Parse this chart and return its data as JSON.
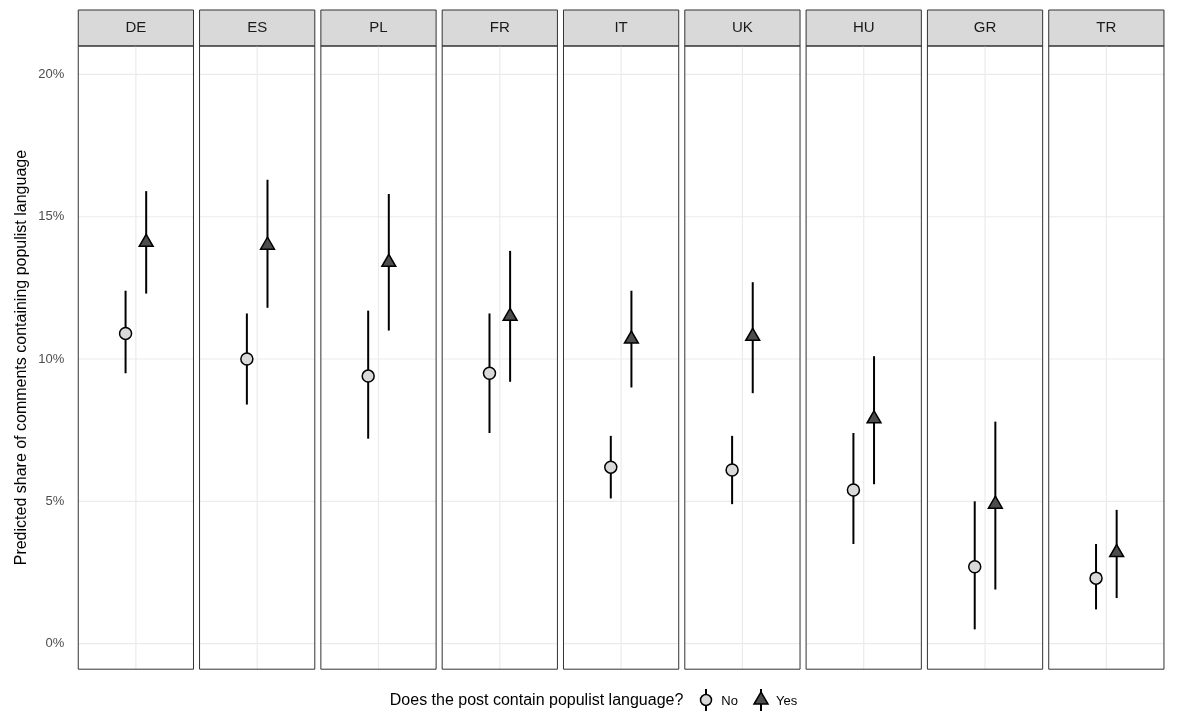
{
  "chart_data": {
    "type": "scatter",
    "ylabel": "Predicted share of comments containing populist language",
    "legend_title": "Does the post contain populist language?",
    "legend": "bottom",
    "grid": true,
    "categories": [
      "DE",
      "ES",
      "PL",
      "FR",
      "IT",
      "UK",
      "HU",
      "GR",
      "TR"
    ],
    "ylim": [
      -0.9,
      21
    ],
    "yticks": [
      {
        "value": 0,
        "label": "0%"
      },
      {
        "value": 5,
        "label": "5%"
      },
      {
        "value": 10,
        "label": "10%"
      },
      {
        "value": 15,
        "label": "15%"
      },
      {
        "value": 20,
        "label": "20%"
      }
    ],
    "series": [
      {
        "name": "No",
        "color": "#d9d9d9",
        "marker": "circle",
        "values": [
          10.9,
          10.0,
          9.4,
          9.5,
          6.2,
          6.1,
          5.4,
          2.7,
          2.3
        ],
        "errors": [
          [
            9.5,
            12.4
          ],
          [
            8.4,
            11.6
          ],
          [
            7.2,
            11.7
          ],
          [
            7.4,
            11.6
          ],
          [
            5.1,
            7.3
          ],
          [
            4.9,
            7.3
          ],
          [
            3.5,
            7.4
          ],
          [
            0.5,
            5.0
          ],
          [
            1.2,
            3.5
          ]
        ]
      },
      {
        "name": "Yes",
        "color": "#4d4d4d",
        "marker": "triangle",
        "values": [
          14.1,
          14.0,
          13.4,
          11.5,
          10.7,
          10.8,
          7.9,
          4.9,
          3.2
        ],
        "errors": [
          [
            12.3,
            15.9
          ],
          [
            11.8,
            16.3
          ],
          [
            11.0,
            15.8
          ],
          [
            9.2,
            13.8
          ],
          [
            9.0,
            12.4
          ],
          [
            8.8,
            12.7
          ],
          [
            5.6,
            10.1
          ],
          [
            1.9,
            7.8
          ],
          [
            1.6,
            4.7
          ]
        ]
      }
    ]
  }
}
